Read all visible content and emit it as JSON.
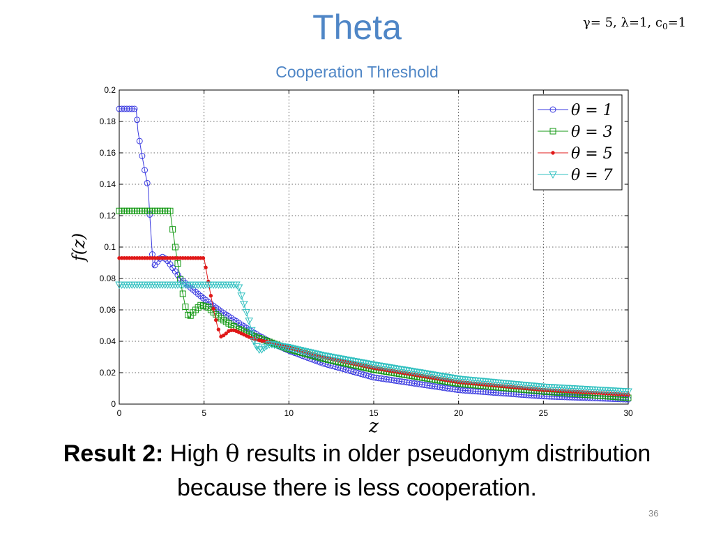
{
  "slide": {
    "title": "Theta",
    "subtitle": "Cooperation Threshold",
    "params": {
      "gamma_sym": "γ",
      "gamma_text": "= 5, ",
      "lambda_sym": "λ",
      "lambda_text": "=1, c",
      "c_sub": "0",
      "c_text": "=1"
    },
    "result": {
      "bold": "Result 2:",
      "line1_pre": " High ",
      "theta_sym": "θ",
      "line1_post": " results in older pseudonym distribution",
      "line2": "because there is less cooperation."
    },
    "page_number": "36"
  },
  "chart_data": {
    "type": "line",
    "xlabel": "z",
    "ylabel": "f(z)",
    "xlim": [
      0,
      30
    ],
    "ylim": [
      0,
      0.2
    ],
    "xticks": [
      "0",
      "5",
      "10",
      "15",
      "20",
      "25",
      "30"
    ],
    "yticks": [
      "0",
      "0.02",
      "0.04",
      "0.06",
      "0.08",
      "0.1",
      "0.12",
      "0.14",
      "0.16",
      "0.18",
      "0.2"
    ],
    "grid": true,
    "legend_position": "top-right",
    "series": [
      {
        "name": "θ = 1",
        "color": "#3a3ae0",
        "marker": "circle",
        "x": [
          0,
          0.6,
          1.0,
          1.1,
          1.3,
          1.5,
          1.7,
          1.85,
          2.0,
          2.2,
          2.5,
          2.8,
          3.2,
          3.6,
          4,
          5,
          6,
          7,
          8,
          9,
          10,
          12,
          15,
          20,
          25,
          30
        ],
        "y": [
          0.188,
          0.188,
          0.188,
          0.174,
          0.161,
          0.149,
          0.138,
          0.112,
          0.087,
          0.09,
          0.094,
          0.092,
          0.086,
          0.08,
          0.076,
          0.067,
          0.059,
          0.052,
          0.045,
          0.039,
          0.034,
          0.026,
          0.017,
          0.009,
          0.005,
          0.003
        ]
      },
      {
        "name": "θ = 3",
        "color": "#159a15",
        "marker": "square",
        "x": [
          0,
          2.5,
          3.0,
          3.1,
          3.3,
          3.5,
          3.7,
          3.9,
          4.1,
          4.4,
          4.8,
          5.2,
          5.6,
          6.2,
          7,
          8,
          9,
          10,
          12,
          15,
          20,
          25,
          30
        ],
        "y": [
          0.123,
          0.123,
          0.123,
          0.115,
          0.1,
          0.086,
          0.073,
          0.062,
          0.055,
          0.059,
          0.063,
          0.062,
          0.058,
          0.053,
          0.048,
          0.043,
          0.039,
          0.035,
          0.029,
          0.022,
          0.013,
          0.008,
          0.004
        ]
      },
      {
        "name": "θ = 5",
        "color": "#e01818",
        "marker": "dot",
        "x": [
          0,
          4.5,
          5.0,
          5.2,
          5.4,
          5.6,
          5.8,
          6.0,
          6.2,
          6.5,
          6.8,
          7.2,
          7.8,
          8.5,
          9,
          10,
          12,
          15,
          20,
          25,
          30
        ],
        "y": [
          0.093,
          0.093,
          0.093,
          0.081,
          0.069,
          0.058,
          0.049,
          0.043,
          0.044,
          0.047,
          0.047,
          0.045,
          0.042,
          0.04,
          0.039,
          0.036,
          0.03,
          0.023,
          0.014,
          0.009,
          0.006
        ]
      },
      {
        "name": "θ = 7",
        "color": "#30c0c0",
        "marker": "triangle-down",
        "x": [
          0,
          6.5,
          7.0,
          7.2,
          7.4,
          7.6,
          7.8,
          8.0,
          8.3,
          8.8,
          9,
          10,
          12,
          15,
          20,
          25,
          30
        ],
        "y": [
          0.076,
          0.076,
          0.076,
          0.069,
          0.062,
          0.055,
          0.047,
          0.038,
          0.034,
          0.038,
          0.038,
          0.036,
          0.031,
          0.025,
          0.016,
          0.011,
          0.008
        ]
      }
    ]
  }
}
